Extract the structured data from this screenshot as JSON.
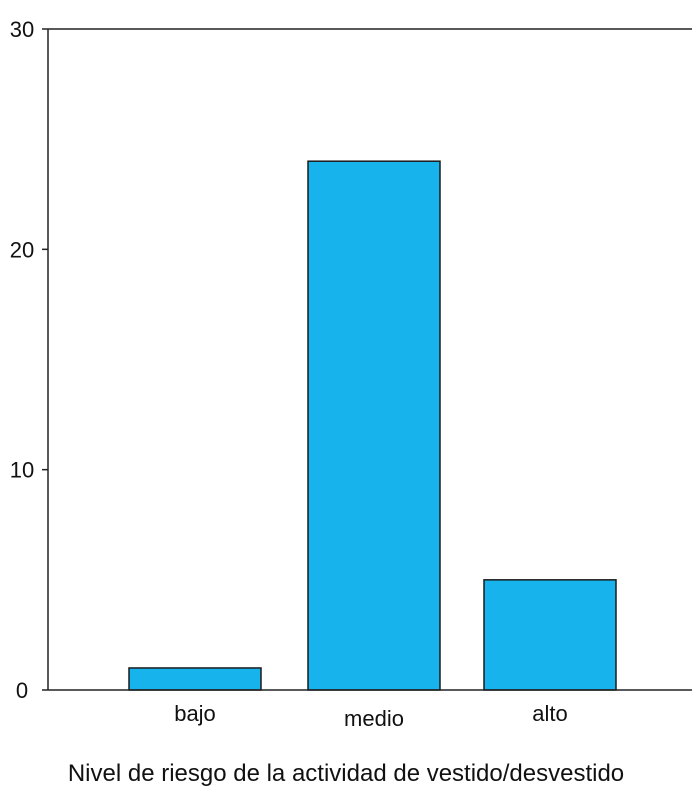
{
  "chart_data": {
    "type": "bar",
    "categories": [
      "bajo",
      "medio",
      "alto"
    ],
    "values": [
      1,
      24,
      5
    ],
    "xlabel": "Nivel de riesgo de la actividad de vestido/desvestido",
    "ylabel": "",
    "ylim": [
      0,
      30
    ],
    "yticks": [
      0,
      10,
      20,
      30
    ],
    "bar_color": "#16b3ec",
    "grid": false
  }
}
